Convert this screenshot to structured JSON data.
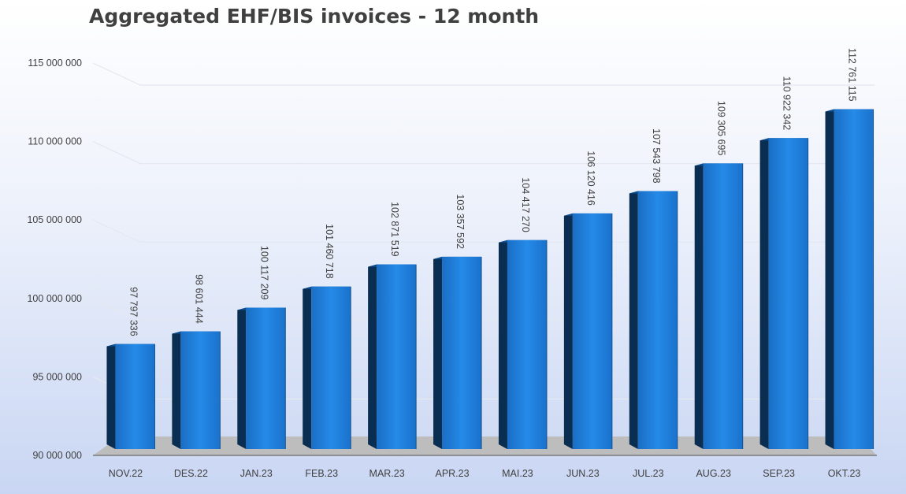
{
  "chart_data": {
    "type": "bar",
    "title": "Aggregated EHF/BIS invoices - 12 month",
    "xlabel": "",
    "ylabel": "",
    "categories": [
      "NOV.22",
      "DES.22",
      "JAN.23",
      "FEB.23",
      "MAR.23",
      "APR.23",
      "MAI.23",
      "JUN.23",
      "JUL.23",
      "AUG.23",
      "SEP.23",
      "OKT.23"
    ],
    "values": [
      97797336,
      98601444,
      100117209,
      101460718,
      102871519,
      103357592,
      104417270,
      106120416,
      107543798,
      109305695,
      110922342,
      112761115
    ],
    "value_labels": [
      "97 797 336",
      "98 601 444",
      "100 117 209",
      "101 460 718",
      "102 871 519",
      "103 357 592",
      "104 417 270",
      "106 120 416",
      "107 543 798",
      "109 305 695",
      "110 922 342",
      "112 761 115"
    ],
    "yticks": [
      90000000,
      95000000,
      100000000,
      105000000,
      110000000,
      115000000
    ],
    "ytick_labels": [
      "90 000 000",
      "95 000 000",
      "100 000 000",
      "105 000 000",
      "110 000 000",
      "115 000 000"
    ],
    "ylim": [
      90000000,
      115000000
    ],
    "grid": true,
    "legend": "none",
    "style": "3d-column",
    "colors": {
      "bar_front": "#1f78d4",
      "bar_front_light": "#2a8ae6",
      "bar_side": "#0a2d52",
      "bar_top": "#0d4f92",
      "floor": "#bdbdbd",
      "gridline": "#e4e8f0",
      "text": "#404040"
    }
  }
}
